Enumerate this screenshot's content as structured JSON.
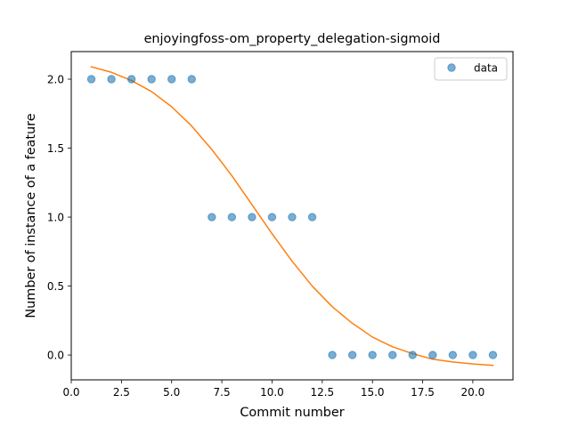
{
  "chart_data": {
    "type": "scatter",
    "title": "enjoyingfoss-om_property_delegation-sigmoid",
    "xlabel": "Commit number",
    "ylabel": "Number of instance of a feature",
    "xlim": [
      0.0,
      22.0
    ],
    "ylim": [
      -0.18,
      2.2
    ],
    "x_ticks": [
      0.0,
      2.5,
      5.0,
      7.5,
      10.0,
      12.5,
      15.0,
      17.5,
      20.0
    ],
    "x_tick_labels": [
      "0.0",
      "2.5",
      "5.0",
      "7.5",
      "10.0",
      "12.5",
      "15.0",
      "17.5",
      "20.0"
    ],
    "y_ticks": [
      0.0,
      0.5,
      1.0,
      1.5,
      2.0
    ],
    "y_tick_labels": [
      "0.0",
      "0.5",
      "1.0",
      "1.5",
      "2.0"
    ],
    "grid": false,
    "legend_position": "top-right",
    "series": [
      {
        "name": "data",
        "kind": "scatter",
        "color": "#1f77b4",
        "x": [
          1,
          2,
          3,
          4,
          5,
          6,
          7,
          8,
          9,
          10,
          11,
          12,
          13,
          14,
          15,
          16,
          17,
          18,
          19,
          20,
          21
        ],
        "y": [
          2,
          2,
          2,
          2,
          2,
          2,
          1,
          1,
          1,
          1,
          1,
          1,
          0,
          0,
          0,
          0,
          0,
          0,
          0,
          0,
          0
        ]
      },
      {
        "kind": "line",
        "color": "#ff7f0e",
        "x": [
          1,
          2,
          3,
          4,
          5,
          6,
          7,
          8,
          9,
          10,
          11,
          12,
          13,
          14,
          15,
          16,
          17,
          18,
          19,
          20,
          21
        ],
        "y": [
          2.09,
          2.05,
          1.99,
          1.91,
          1.8,
          1.66,
          1.49,
          1.3,
          1.09,
          0.88,
          0.68,
          0.5,
          0.35,
          0.23,
          0.13,
          0.06,
          0.01,
          -0.03,
          -0.05,
          -0.065,
          -0.075
        ]
      }
    ]
  }
}
